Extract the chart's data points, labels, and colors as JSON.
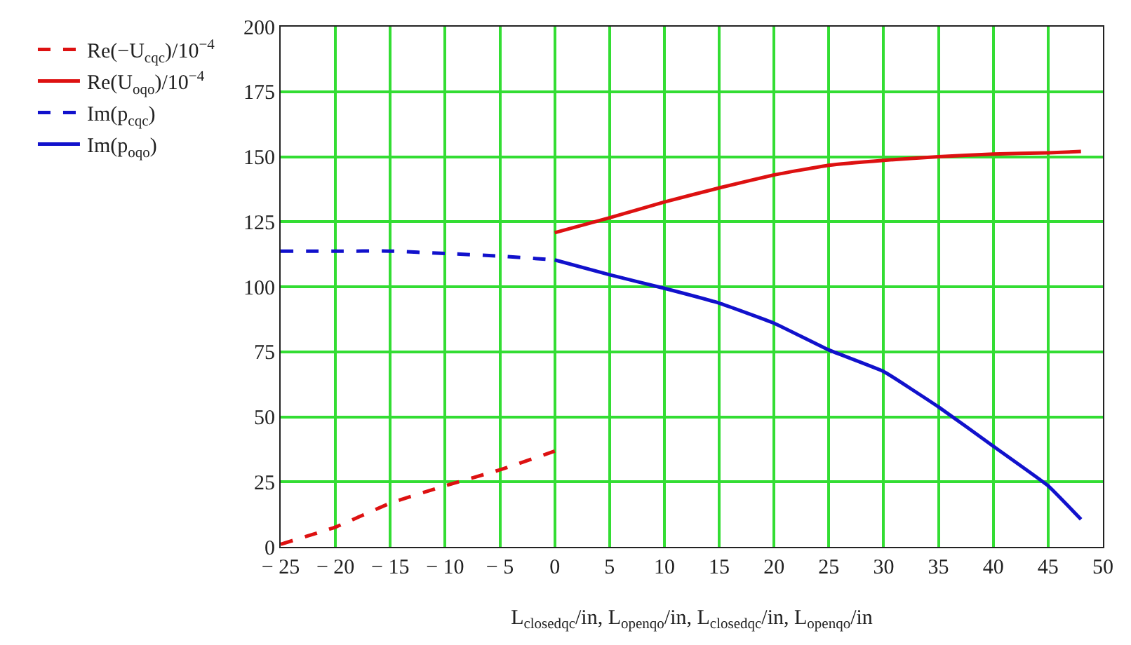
{
  "chart_data": {
    "type": "line",
    "xlabel": "L$_{closed}$$_{qc}$/in, L$_{open}$$_{qo}$/in, L$_{closed}$$_{qc}$/in, L$_{open}$$_{qo}$/in",
    "series": [
      {
        "name": "Re(−U$_{c}$$_{qc}$)/10$^{−4}$",
        "color": "#dd1111",
        "line_style": "dashed",
        "x": [
          -25,
          -20,
          -15,
          -10,
          -5,
          0
        ],
        "values": [
          1,
          7.6,
          16.8,
          23.5,
          29.6,
          36.8
        ]
      },
      {
        "name": "Re(U$_{o}$$_{qo}$)/10$^{−4}$",
        "color": "#dd1111",
        "line_style": "solid",
        "x": [
          0,
          5,
          10,
          15,
          20,
          25,
          30,
          35,
          40,
          45,
          48
        ],
        "values": [
          120.8,
          126.5,
          132.6,
          138,
          143,
          146.7,
          148.6,
          150,
          151,
          151.5,
          152
        ]
      },
      {
        "name": "Im(p$_{c}$$_{qc}$)",
        "color": "#1111cc",
        "line_style": "dashed",
        "x": [
          -25,
          -20,
          -15,
          -10,
          -5,
          0
        ],
        "values": [
          113.7,
          113.7,
          113.7,
          112.8,
          111.8,
          110.3
        ]
      },
      {
        "name": "Im(p$_{o}$$_{qo}$)",
        "color": "#1111cc",
        "line_style": "solid",
        "x": [
          0,
          5,
          10,
          15,
          20,
          25,
          30,
          35,
          40,
          45,
          48
        ],
        "values": [
          110.3,
          104.6,
          99.4,
          93.7,
          86,
          75.7,
          67.4,
          53.8,
          38.7,
          23.5,
          10.6
        ]
      }
    ],
    "xlim": [
      -25,
      50
    ],
    "xticks": [
      -25,
      -20,
      -15,
      -10,
      -5,
      0,
      5,
      10,
      15,
      20,
      25,
      30,
      35,
      40,
      45,
      50
    ],
    "ylim": [
      0,
      200
    ],
    "yticks": [
      0,
      25,
      50,
      75,
      100,
      125,
      150,
      175,
      200
    ],
    "grid": true,
    "legend": "left",
    "marker": "none"
  }
}
